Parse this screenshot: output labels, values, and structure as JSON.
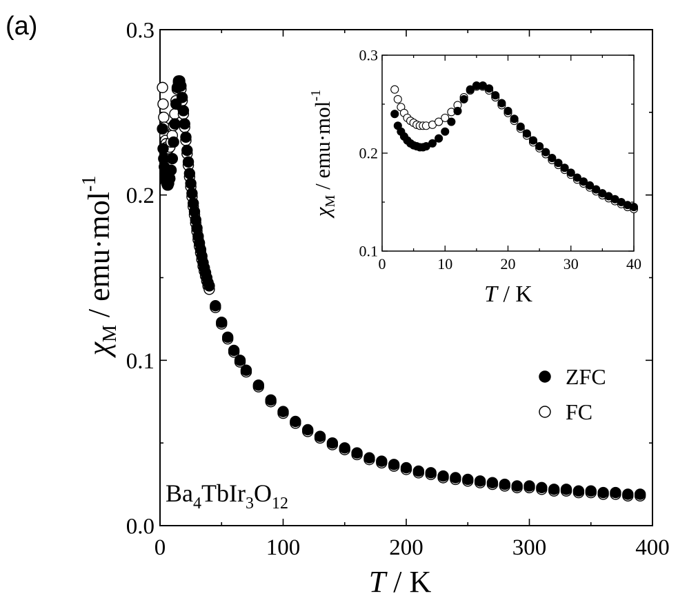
{
  "panel_label": "(a)",
  "chart_data": [
    {
      "type": "scatter",
      "id": "main",
      "compound": {
        "base": "Ba",
        "s1": "4",
        "mid": "TbIr",
        "s2": "3",
        "tail": "O",
        "s3": "12"
      },
      "xlabel": {
        "italic": "T",
        "rest": " / K"
      },
      "ylabel": {
        "chi": "χ",
        "sub": "M",
        "rest": " / emu·mol",
        "sup": "-1"
      },
      "xlim": [
        0,
        400
      ],
      "ylim": [
        0.0,
        0.3
      ],
      "xticks": [
        0,
        100,
        200,
        300,
        400
      ],
      "xtick_labels": [
        "0",
        "100",
        "200",
        "300",
        "400"
      ],
      "yticks": [
        0.0,
        0.1,
        0.2,
        0.3
      ],
      "ytick_labels": [
        "0.0",
        "0.1",
        "0.2",
        "0.3"
      ],
      "legend": {
        "position": "right"
      },
      "series": [
        {
          "name": "ZFC",
          "marker": "filled-circle",
          "x": [
            2,
            2.5,
            3,
            3.5,
            4,
            4.5,
            5,
            5.5,
            6,
            6.5,
            7,
            8,
            9,
            10,
            11,
            12,
            13,
            14,
            15,
            16,
            17,
            18,
            19,
            20,
            21,
            22,
            23,
            24,
            25,
            26,
            27,
            28,
            29,
            30,
            31,
            32,
            33,
            34,
            35,
            36,
            37,
            38,
            39,
            40,
            45,
            50,
            55,
            60,
            65,
            70,
            80,
            90,
            100,
            110,
            120,
            130,
            140,
            150,
            160,
            170,
            180,
            190,
            200,
            210,
            220,
            230,
            240,
            250,
            260,
            270,
            280,
            290,
            300,
            310,
            320,
            330,
            340,
            350,
            360,
            370,
            380,
            390
          ],
          "y": [
            0.24,
            0.228,
            0.222,
            0.217,
            0.213,
            0.21,
            0.208,
            0.207,
            0.206,
            0.206,
            0.207,
            0.21,
            0.215,
            0.222,
            0.232,
            0.243,
            0.255,
            0.265,
            0.269,
            0.269,
            0.266,
            0.259,
            0.251,
            0.243,
            0.235,
            0.227,
            0.22,
            0.213,
            0.207,
            0.201,
            0.195,
            0.19,
            0.185,
            0.18,
            0.175,
            0.171,
            0.167,
            0.163,
            0.159,
            0.156,
            0.153,
            0.15,
            0.147,
            0.145,
            0.133,
            0.123,
            0.114,
            0.106,
            0.1,
            0.094,
            0.085,
            0.076,
            0.069,
            0.063,
            0.058,
            0.054,
            0.05,
            0.047,
            0.044,
            0.041,
            0.039,
            0.037,
            0.035,
            0.033,
            0.032,
            0.03,
            0.029,
            0.028,
            0.027,
            0.026,
            0.025,
            0.024,
            0.024,
            0.023,
            0.022,
            0.022,
            0.021,
            0.021,
            0.02,
            0.02,
            0.019,
            0.019
          ]
        },
        {
          "name": "FC",
          "marker": "open-circle",
          "x": [
            2,
            2.5,
            3,
            3.5,
            4,
            4.5,
            5,
            5.5,
            6,
            6.5,
            7,
            8,
            9,
            10,
            11,
            12,
            13,
            14,
            15,
            16,
            17,
            18,
            19,
            20,
            21,
            22,
            23,
            24,
            25,
            26,
            27,
            28,
            29,
            30,
            31,
            32,
            33,
            34,
            35,
            36,
            37,
            38,
            39,
            40,
            45,
            50,
            55,
            60,
            65,
            70,
            80,
            90,
            100,
            110,
            120,
            130,
            140,
            150,
            160,
            170,
            180,
            190,
            200,
            210,
            220,
            230,
            240,
            250,
            260,
            270,
            280,
            290,
            300,
            310,
            320,
            330,
            340,
            350,
            360,
            370,
            380,
            390
          ],
          "y": [
            0.265,
            0.255,
            0.247,
            0.241,
            0.236,
            0.233,
            0.231,
            0.229,
            0.228,
            0.228,
            0.228,
            0.229,
            0.232,
            0.236,
            0.242,
            0.249,
            0.257,
            0.264,
            0.268,
            0.268,
            0.264,
            0.257,
            0.249,
            0.241,
            0.233,
            0.225,
            0.218,
            0.211,
            0.205,
            0.199,
            0.193,
            0.188,
            0.183,
            0.178,
            0.173,
            0.169,
            0.165,
            0.161,
            0.157,
            0.154,
            0.151,
            0.148,
            0.145,
            0.143,
            0.132,
            0.122,
            0.113,
            0.105,
            0.099,
            0.093,
            0.084,
            0.075,
            0.068,
            0.062,
            0.057,
            0.053,
            0.049,
            0.046,
            0.043,
            0.04,
            0.038,
            0.036,
            0.034,
            0.032,
            0.031,
            0.029,
            0.028,
            0.027,
            0.026,
            0.025,
            0.024,
            0.023,
            0.023,
            0.022,
            0.021,
            0.021,
            0.02,
            0.02,
            0.019,
            0.019,
            0.018,
            0.018
          ]
        }
      ]
    },
    {
      "type": "scatter",
      "id": "inset",
      "xlabel": {
        "italic": "T",
        "rest": " / K"
      },
      "ylabel": {
        "chi": "χ",
        "sub": "M",
        "rest": " / emu·mol",
        "sup": "-1"
      },
      "xlim": [
        0,
        40
      ],
      "ylim": [
        0.1,
        0.3
      ],
      "xticks": [
        0,
        10,
        20,
        30,
        40
      ],
      "xtick_labels": [
        "0",
        "10",
        "20",
        "30",
        "40"
      ],
      "yticks": [
        0.1,
        0.2,
        0.3
      ],
      "ytick_labels": [
        "0.1",
        "0.2",
        "0.3"
      ],
      "series": [
        {
          "name": "ZFC",
          "marker": "filled-circle",
          "x": [
            2,
            2.5,
            3,
            3.5,
            4,
            4.5,
            5,
            5.5,
            6,
            6.5,
            7,
            8,
            9,
            10,
            11,
            12,
            13,
            14,
            15,
            16,
            17,
            18,
            19,
            20,
            21,
            22,
            23,
            24,
            25,
            26,
            27,
            28,
            29,
            30,
            31,
            32,
            33,
            34,
            35,
            36,
            37,
            38,
            39,
            40
          ],
          "y": [
            0.24,
            0.228,
            0.222,
            0.217,
            0.213,
            0.21,
            0.208,
            0.207,
            0.206,
            0.206,
            0.207,
            0.21,
            0.215,
            0.222,
            0.232,
            0.243,
            0.255,
            0.265,
            0.269,
            0.269,
            0.266,
            0.259,
            0.251,
            0.243,
            0.235,
            0.227,
            0.22,
            0.213,
            0.207,
            0.201,
            0.195,
            0.19,
            0.185,
            0.18,
            0.175,
            0.171,
            0.167,
            0.163,
            0.159,
            0.156,
            0.153,
            0.15,
            0.147,
            0.145
          ]
        },
        {
          "name": "FC",
          "marker": "open-circle",
          "x": [
            2,
            2.5,
            3,
            3.5,
            4,
            4.5,
            5,
            5.5,
            6,
            6.5,
            7,
            8,
            9,
            10,
            11,
            12,
            13,
            14,
            15,
            16,
            17,
            18,
            19,
            20,
            21,
            22,
            23,
            24,
            25,
            26,
            27,
            28,
            29,
            30,
            31,
            32,
            33,
            34,
            35,
            36,
            37,
            38,
            39,
            40
          ],
          "y": [
            0.265,
            0.255,
            0.247,
            0.241,
            0.236,
            0.233,
            0.231,
            0.229,
            0.228,
            0.228,
            0.228,
            0.229,
            0.232,
            0.236,
            0.242,
            0.249,
            0.257,
            0.264,
            0.268,
            0.268,
            0.264,
            0.257,
            0.249,
            0.241,
            0.233,
            0.225,
            0.218,
            0.211,
            0.205,
            0.199,
            0.193,
            0.188,
            0.183,
            0.178,
            0.173,
            0.169,
            0.165,
            0.161,
            0.157,
            0.154,
            0.151,
            0.148,
            0.145,
            0.143
          ]
        }
      ]
    }
  ]
}
